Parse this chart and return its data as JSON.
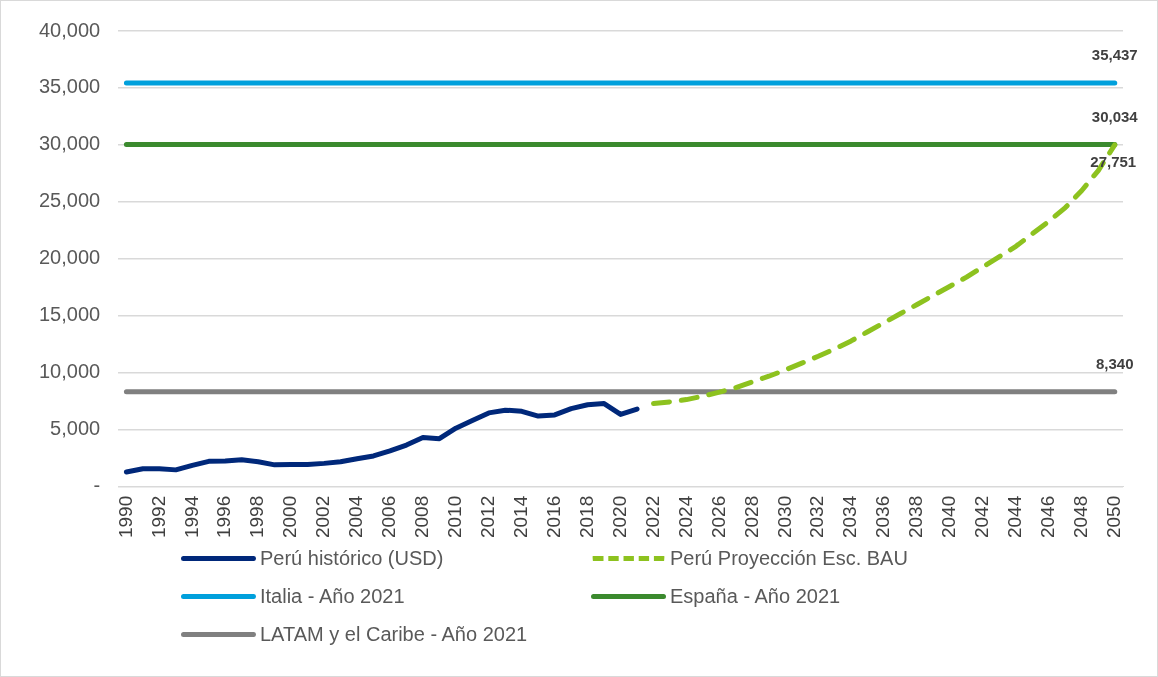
{
  "chart_data": {
    "type": "line",
    "categories": [
      "1990",
      null,
      "1992",
      null,
      "1994",
      null,
      "1996",
      null,
      "1998",
      null,
      "2000",
      null,
      "2002",
      null,
      "2004",
      null,
      "2006",
      null,
      "2008",
      null,
      "2010",
      null,
      "2012",
      null,
      "2014",
      null,
      "2016",
      null,
      "2018",
      null,
      "2020",
      null,
      "2022",
      null,
      "2024",
      null,
      "2026",
      null,
      "2028",
      null,
      "2030",
      null,
      "2032",
      null,
      "2034",
      null,
      "2036",
      null,
      "2038",
      null,
      "2040",
      null,
      "2042",
      null,
      "2044",
      null,
      "2046",
      null,
      "2048",
      null,
      "2050"
    ],
    "series": [
      {
        "name": "Perú histórico (USD)",
        "color": "#00287a",
        "line_style": "solid",
        "values": [
          1300,
          1580,
          1580,
          1480,
          1880,
          2230,
          2260,
          2360,
          2190,
          1920,
          1950,
          1950,
          2050,
          2190,
          2460,
          2700,
          3150,
          3660,
          4320,
          4220,
          5140,
          5820,
          6480,
          6720,
          6620,
          6200,
          6300,
          6850,
          7200,
          7300,
          6350,
          6820,
          null,
          null,
          null,
          null,
          null,
          null,
          null,
          null,
          null,
          null,
          null,
          null,
          null,
          null,
          null,
          null,
          null,
          null,
          null,
          null,
          null,
          null,
          null,
          null,
          null,
          null,
          null,
          null,
          null
        ]
      },
      {
        "name": "Perú Proyección Esc. BAU",
        "color": "#8dc21f",
        "line_style": "dashed",
        "values": [
          null,
          null,
          null,
          null,
          null,
          null,
          null,
          null,
          null,
          null,
          null,
          null,
          null,
          null,
          null,
          null,
          null,
          null,
          null,
          null,
          null,
          null,
          null,
          null,
          null,
          null,
          null,
          null,
          null,
          null,
          null,
          null,
          7300,
          7450,
          7650,
          7950,
          8300,
          8700,
          9200,
          9700,
          10250,
          10850,
          11450,
          12100,
          12800,
          13600,
          14400,
          15200,
          16000,
          16800,
          17600,
          18400,
          19300,
          20200,
          21100,
          22200,
          23300,
          24500,
          26000,
          27751,
          30000
        ],
        "value_labels": [
          null,
          null,
          null,
          null,
          null,
          null,
          null,
          null,
          null,
          null,
          null,
          null,
          null,
          null,
          null,
          null,
          null,
          null,
          null,
          null,
          null,
          null,
          null,
          null,
          null,
          null,
          null,
          null,
          null,
          null,
          null,
          null,
          null,
          null,
          null,
          null,
          null,
          null,
          null,
          null,
          null,
          null,
          null,
          null,
          null,
          null,
          null,
          null,
          null,
          null,
          null,
          null,
          null,
          null,
          null,
          null,
          null,
          null,
          null,
          "27,751",
          null
        ]
      },
      {
        "name": "Italia - Año 2021",
        "color": "#00a0dc",
        "line_style": "solid",
        "values": [
          35437,
          35437,
          35437,
          35437,
          35437,
          35437,
          35437,
          35437,
          35437,
          35437,
          35437,
          35437,
          35437,
          35437,
          35437,
          35437,
          35437,
          35437,
          35437,
          35437,
          35437,
          35437,
          35437,
          35437,
          35437,
          35437,
          35437,
          35437,
          35437,
          35437,
          35437,
          35437,
          35437,
          35437,
          35437,
          35437,
          35437,
          35437,
          35437,
          35437,
          35437,
          35437,
          35437,
          35437,
          35437,
          35437,
          35437,
          35437,
          35437,
          35437,
          35437,
          35437,
          35437,
          35437,
          35437,
          35437,
          35437,
          35437,
          35437,
          35437,
          35437
        ],
        "value_labels": [
          null,
          null,
          null,
          null,
          null,
          null,
          null,
          null,
          null,
          null,
          null,
          null,
          null,
          null,
          null,
          null,
          null,
          null,
          null,
          null,
          null,
          null,
          null,
          null,
          null,
          null,
          null,
          null,
          null,
          null,
          null,
          null,
          null,
          null,
          null,
          null,
          null,
          null,
          null,
          null,
          null,
          null,
          null,
          null,
          null,
          null,
          null,
          null,
          null,
          null,
          null,
          null,
          null,
          null,
          null,
          null,
          null,
          null,
          null,
          null,
          "35,437"
        ]
      },
      {
        "name": "España - Año 2021",
        "color": "#3b8a2e",
        "line_style": "solid",
        "values": [
          30034,
          30034,
          30034,
          30034,
          30034,
          30034,
          30034,
          30034,
          30034,
          30034,
          30034,
          30034,
          30034,
          30034,
          30034,
          30034,
          30034,
          30034,
          30034,
          30034,
          30034,
          30034,
          30034,
          30034,
          30034,
          30034,
          30034,
          30034,
          30034,
          30034,
          30034,
          30034,
          30034,
          30034,
          30034,
          30034,
          30034,
          30034,
          30034,
          30034,
          30034,
          30034,
          30034,
          30034,
          30034,
          30034,
          30034,
          30034,
          30034,
          30034,
          30034,
          30034,
          30034,
          30034,
          30034,
          30034,
          30034,
          30034,
          30034,
          30034,
          30034
        ],
        "value_labels": [
          null,
          null,
          null,
          null,
          null,
          null,
          null,
          null,
          null,
          null,
          null,
          null,
          null,
          null,
          null,
          null,
          null,
          null,
          null,
          null,
          null,
          null,
          null,
          null,
          null,
          null,
          null,
          null,
          null,
          null,
          null,
          null,
          null,
          null,
          null,
          null,
          null,
          null,
          null,
          null,
          null,
          null,
          null,
          null,
          null,
          null,
          null,
          null,
          null,
          null,
          null,
          null,
          null,
          null,
          null,
          null,
          null,
          null,
          null,
          null,
          "30,034"
        ]
      },
      {
        "name": "LATAM y el Caribe - Año 2021",
        "color": "#808080",
        "line_style": "solid",
        "values": [
          8340,
          8340,
          8340,
          8340,
          8340,
          8340,
          8340,
          8340,
          8340,
          8340,
          8340,
          8340,
          8340,
          8340,
          8340,
          8340,
          8340,
          8340,
          8340,
          8340,
          8340,
          8340,
          8340,
          8340,
          8340,
          8340,
          8340,
          8340,
          8340,
          8340,
          8340,
          8340,
          8340,
          8340,
          8340,
          8340,
          8340,
          8340,
          8340,
          8340,
          8340,
          8340,
          8340,
          8340,
          8340,
          8340,
          8340,
          8340,
          8340,
          8340,
          8340,
          8340,
          8340,
          8340,
          8340,
          8340,
          8340,
          8340,
          8340,
          8340,
          8340
        ],
        "value_labels": [
          null,
          null,
          null,
          null,
          null,
          null,
          null,
          null,
          null,
          null,
          null,
          null,
          null,
          null,
          null,
          null,
          null,
          null,
          null,
          null,
          null,
          null,
          null,
          null,
          null,
          null,
          null,
          null,
          null,
          null,
          null,
          null,
          null,
          null,
          null,
          null,
          null,
          null,
          null,
          null,
          null,
          null,
          null,
          null,
          null,
          null,
          null,
          null,
          null,
          null,
          null,
          null,
          null,
          null,
          null,
          null,
          null,
          null,
          null,
          null,
          "8,340"
        ]
      }
    ],
    "ylim": [
      0,
      40000
    ],
    "yticks": [
      {
        "value": 0,
        "label": "-"
      },
      {
        "value": 5000,
        "label": "5,000"
      },
      {
        "value": 10000,
        "label": "10,000"
      },
      {
        "value": 15000,
        "label": "15,000"
      },
      {
        "value": 20000,
        "label": "20,000"
      },
      {
        "value": 25000,
        "label": "25,000"
      },
      {
        "value": 30000,
        "label": "30,000"
      },
      {
        "value": 35000,
        "label": "35,000"
      },
      {
        "value": 40000,
        "label": "40,000"
      }
    ],
    "grid": "y",
    "legend": "bottom",
    "marker": "none"
  }
}
